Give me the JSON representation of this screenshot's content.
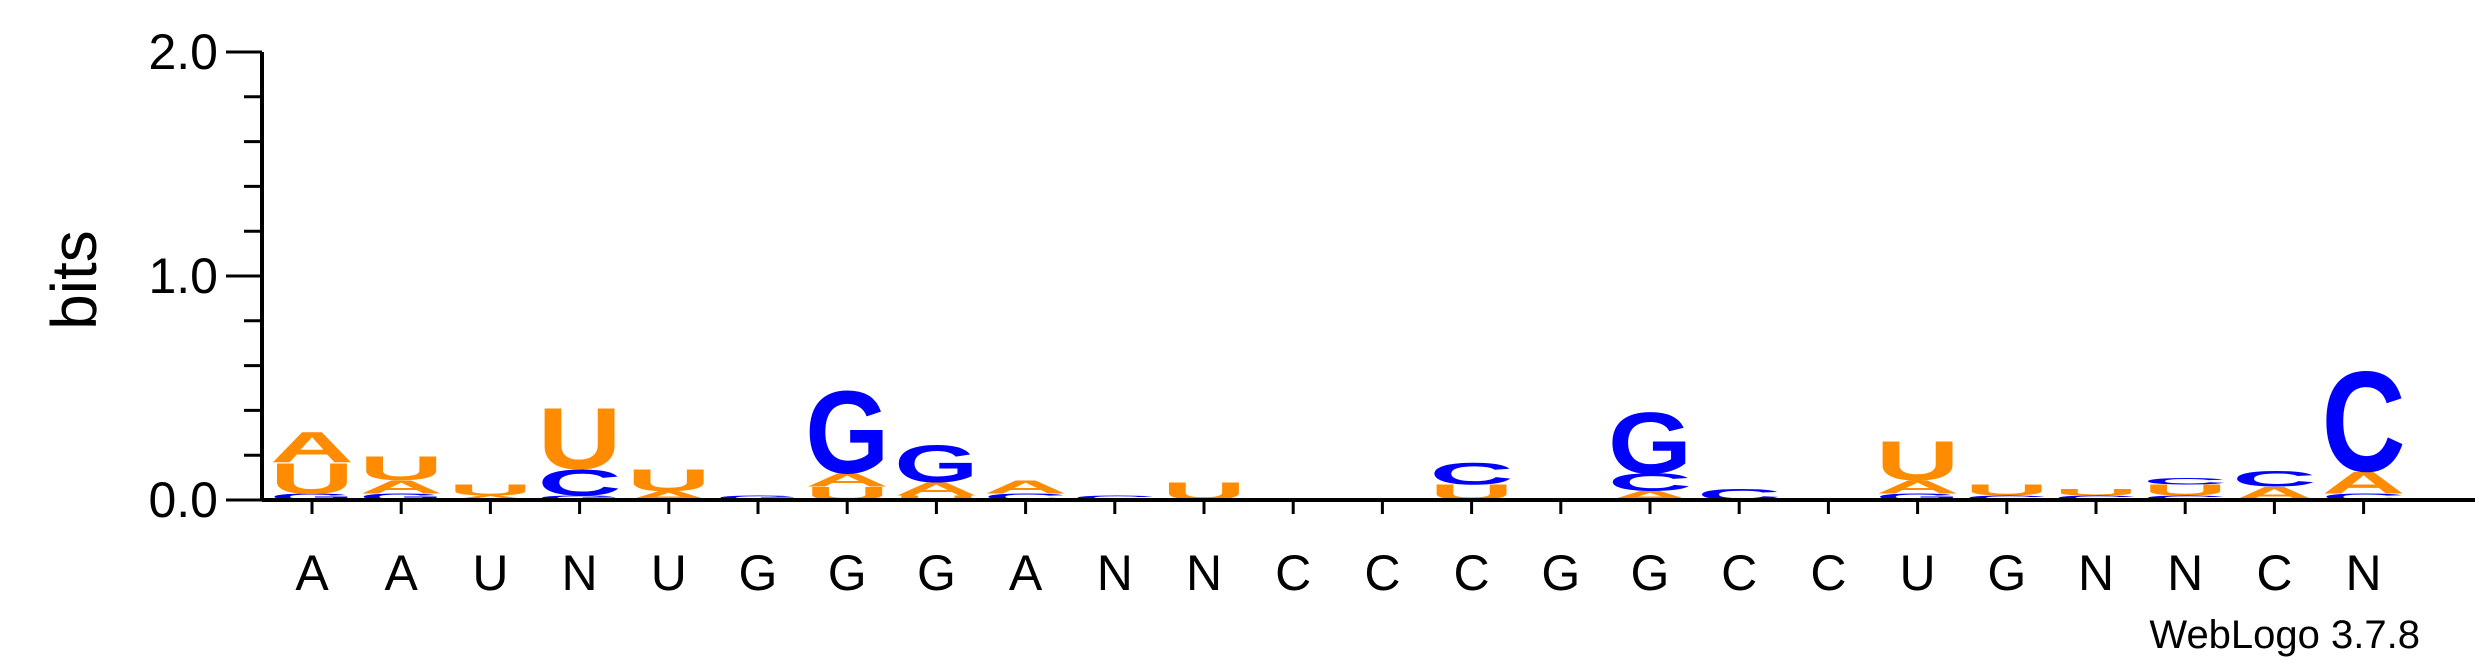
{
  "colors": {
    "A": "#ff8c00",
    "U": "#ff8c00",
    "C": "#0000ff",
    "G": "#0000ff",
    "axis": "#000000"
  },
  "chart_data": {
    "type": "sequence-logo",
    "ylabel": "bits",
    "ylim": [
      0,
      2
    ],
    "yticks": [
      "0.0",
      "1.0",
      "2.0"
    ],
    "credit": "WebLogo 3.7.8",
    "positions": [
      {
        "label": "A",
        "stack": [
          {
            "letter": "G",
            "bits": 0.03
          },
          {
            "letter": "U",
            "bits": 0.14
          },
          {
            "letter": "A",
            "bits": 0.14
          }
        ]
      },
      {
        "label": "A",
        "stack": [
          {
            "letter": "G",
            "bits": 0.03
          },
          {
            "letter": "A",
            "bits": 0.06
          },
          {
            "letter": "U",
            "bits": 0.11
          }
        ]
      },
      {
        "label": "U",
        "stack": [
          {
            "letter": "A",
            "bits": 0.02
          },
          {
            "letter": "U",
            "bits": 0.05
          }
        ]
      },
      {
        "label": "N",
        "stack": [
          {
            "letter": "G",
            "bits": 0.02
          },
          {
            "letter": "C",
            "bits": 0.12
          },
          {
            "letter": "U",
            "bits": 0.28
          }
        ]
      },
      {
        "label": "U",
        "stack": [
          {
            "letter": "A",
            "bits": 0.04
          },
          {
            "letter": "U",
            "bits": 0.1
          }
        ]
      },
      {
        "label": "G",
        "stack": [
          {
            "letter": "G",
            "bits": 0.02
          }
        ]
      },
      {
        "label": "G",
        "stack": [
          {
            "letter": "U",
            "bits": 0.06
          },
          {
            "letter": "A",
            "bits": 0.06
          },
          {
            "letter": "G",
            "bits": 0.38
          }
        ]
      },
      {
        "label": "G",
        "stack": [
          {
            "letter": "U",
            "bits": 0.02
          },
          {
            "letter": "A",
            "bits": 0.06
          },
          {
            "letter": "G",
            "bits": 0.17
          }
        ]
      },
      {
        "label": "A",
        "stack": [
          {
            "letter": "C",
            "bits": 0.03
          },
          {
            "letter": "A",
            "bits": 0.06
          }
        ]
      },
      {
        "label": "N",
        "stack": [
          {
            "letter": "C",
            "bits": 0.02
          }
        ]
      },
      {
        "label": "N",
        "stack": [
          {
            "letter": "U",
            "bits": 0.08
          }
        ]
      },
      {
        "label": "C",
        "stack": []
      },
      {
        "label": "C",
        "stack": []
      },
      {
        "label": "C",
        "stack": [
          {
            "letter": "U",
            "bits": 0.07
          },
          {
            "letter": "C",
            "bits": 0.1
          }
        ]
      },
      {
        "label": "G",
        "stack": []
      },
      {
        "label": "G",
        "stack": [
          {
            "letter": "A",
            "bits": 0.04
          },
          {
            "letter": "C",
            "bits": 0.08
          },
          {
            "letter": "G",
            "bits": 0.28
          }
        ]
      },
      {
        "label": "C",
        "stack": [
          {
            "letter": "C",
            "bits": 0.05
          }
        ]
      },
      {
        "label": "C",
        "stack": []
      },
      {
        "label": "U",
        "stack": [
          {
            "letter": "G",
            "bits": 0.03
          },
          {
            "letter": "A",
            "bits": 0.06
          },
          {
            "letter": "U",
            "bits": 0.18
          }
        ]
      },
      {
        "label": "G",
        "stack": [
          {
            "letter": "C",
            "bits": 0.02
          },
          {
            "letter": "U",
            "bits": 0.05
          }
        ]
      },
      {
        "label": "N",
        "stack": [
          {
            "letter": "C",
            "bits": 0.02
          },
          {
            "letter": "U",
            "bits": 0.03
          }
        ]
      },
      {
        "label": "N",
        "stack": [
          {
            "letter": "C",
            "bits": 0.02
          },
          {
            "letter": "U",
            "bits": 0.05
          },
          {
            "letter": "C",
            "bits": 0.03
          }
        ]
      },
      {
        "label": "C",
        "stack": [
          {
            "letter": "A",
            "bits": 0.06
          },
          {
            "letter": "C",
            "bits": 0.07
          }
        ]
      },
      {
        "label": "N",
        "stack": [
          {
            "letter": "C",
            "bits": 0.03
          },
          {
            "letter": "A",
            "bits": 0.1
          },
          {
            "letter": "C",
            "bits": 0.46
          }
        ]
      }
    ]
  }
}
